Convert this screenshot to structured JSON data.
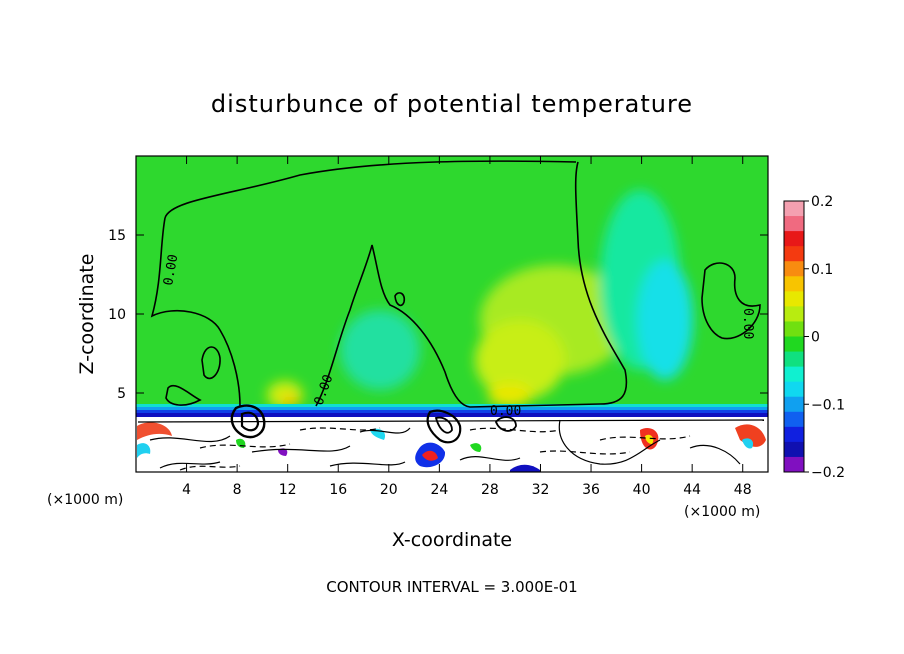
{
  "chart_data": {
    "type": "heatmap",
    "title": "disturbunce of potential temperature",
    "xlabel": "X-coordinate",
    "ylabel": "Z-coordinate",
    "x_unit": "(×1000 m)",
    "x_unit_right": "(×1000 m)",
    "xlim": [
      0,
      50
    ],
    "ylim": [
      0,
      20
    ],
    "x_ticks": [
      4,
      8,
      12,
      16,
      20,
      24,
      28,
      32,
      36,
      40,
      44,
      48
    ],
    "y_ticks": [
      5,
      10,
      15
    ],
    "colorbar": {
      "min": -0.2,
      "max": 0.2,
      "ticks": [
        "0.2",
        "0.1",
        "0",
        "−0.1",
        "−0.2"
      ],
      "colors_top_to_bottom": [
        "#f4a0b0",
        "#f06a80",
        "#e81818",
        "#f43a10",
        "#f88c10",
        "#f8c400",
        "#e8e800",
        "#b8ec10",
        "#70e010",
        "#20d820",
        "#10e080",
        "#10f0d0",
        "#10d8f0",
        "#10a0f0",
        "#1060f0",
        "#1020e0",
        "#1010b0",
        "#8010c0"
      ]
    },
    "contour_labels": [
      "0.00",
      "0.00",
      "0.00",
      "0.00"
    ],
    "contour_interval_text": "CONTOUR INTERVAL = 3.000E-01"
  }
}
